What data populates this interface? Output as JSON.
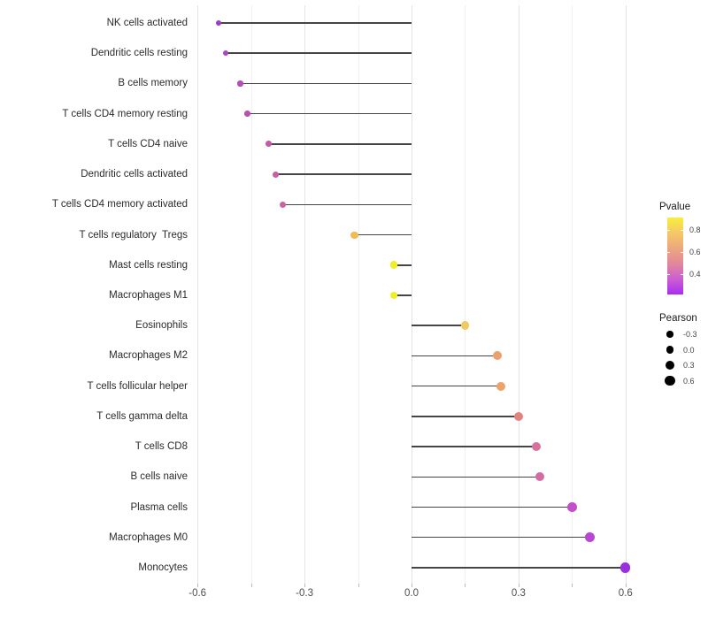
{
  "chart_data": {
    "type": "lollipop",
    "orientation": "horizontal",
    "title": "",
    "xlabel": "",
    "ylabel": "",
    "x_ticks": [
      "-0.6",
      "-0.3",
      "0.0",
      "0.3",
      "0.6"
    ],
    "x_tick_values": [
      -0.6,
      -0.3,
      0.0,
      0.3,
      0.6
    ],
    "x_minor_tick_values": [
      -0.45,
      -0.15,
      0.15,
      0.45
    ],
    "xlim": [
      -0.62,
      0.67
    ],
    "baseline": 0,
    "grid": true,
    "legend_position": "right",
    "points": [
      {
        "label": "NK cells activated",
        "pearson": -0.54,
        "pvalue": 0.33,
        "color": "#9b3dc8"
      },
      {
        "label": "Dendritic cells resting",
        "pearson": -0.52,
        "pvalue": 0.38,
        "color": "#aa46c0"
      },
      {
        "label": "B cells memory",
        "pearson": -0.48,
        "pvalue": 0.42,
        "color": "#b54db8"
      },
      {
        "label": "T cells CD4 memory resting",
        "pearson": -0.46,
        "pvalue": 0.43,
        "color": "#b850b2"
      },
      {
        "label": "T cells CD4 naive",
        "pearson": -0.4,
        "pvalue": 0.47,
        "color": "#c35aa8"
      },
      {
        "label": "Dendritic cells activated",
        "pearson": -0.38,
        "pvalue": 0.49,
        "color": "#c75fa5"
      },
      {
        "label": "T cells CD4 memory activated",
        "pearson": -0.36,
        "pvalue": 0.5,
        "color": "#ca63a2"
      },
      {
        "label": "T cells regulatory  Tregs",
        "pearson": -0.16,
        "pvalue": 0.77,
        "color": "#f0bb58"
      },
      {
        "label": "Mast cells resting",
        "pearson": -0.05,
        "pvalue": 0.9,
        "color": "#f0ee24"
      },
      {
        "label": "Macrophages M1",
        "pearson": -0.05,
        "pvalue": 0.9,
        "color": "#f0ee24"
      },
      {
        "label": "Eosinophils",
        "pearson": 0.15,
        "pvalue": 0.79,
        "color": "#f2c95e"
      },
      {
        "label": "Macrophages M2",
        "pearson": 0.24,
        "pvalue": 0.66,
        "color": "#eba06e"
      },
      {
        "label": "T cells follicular helper",
        "pearson": 0.25,
        "pvalue": 0.66,
        "color": "#eca26b"
      },
      {
        "label": "T cells gamma delta",
        "pearson": 0.3,
        "pvalue": 0.6,
        "color": "#e3837f"
      },
      {
        "label": "T cells CD8",
        "pearson": 0.35,
        "pvalue": 0.54,
        "color": "#d8709d"
      },
      {
        "label": "B cells naive",
        "pearson": 0.36,
        "pvalue": 0.52,
        "color": "#d56ba3"
      },
      {
        "label": "Plasma cells",
        "pearson": 0.45,
        "pvalue": 0.4,
        "color": "#c250c8"
      },
      {
        "label": "Macrophages M0",
        "pearson": 0.5,
        "pvalue": 0.36,
        "color": "#b847d2"
      },
      {
        "label": "Monocytes",
        "pearson": 0.6,
        "pvalue": 0.24,
        "color": "#9a2fe0"
      }
    ]
  },
  "legend_pvalue": {
    "title": "Pvalue",
    "tick_labels": [
      "0.8",
      "0.6",
      "0.4"
    ],
    "tick_values": [
      0.8,
      0.6,
      0.4
    ],
    "range": [
      0.22,
      0.91
    ],
    "gradient_stops": [
      "#f8ee3e",
      "#f5c866",
      "#eda77e",
      "#e2879c",
      "#cc5ed2",
      "#a82df2"
    ]
  },
  "legend_pearson": {
    "title": "Pearson",
    "item_labels": [
      "-0.3",
      "0.0",
      "0.3",
      "0.6"
    ],
    "item_values": [
      -0.3,
      0.0,
      0.3,
      0.6
    ],
    "dot_color": "#000000"
  },
  "colors": {
    "background": "#ffffff",
    "stem": "#454545",
    "grid_major": "#e4e4e4",
    "grid_minor": "#f1f1f1",
    "axis_tick": "#bbbbbb",
    "axis_text": "#4d4d4d",
    "category_text": "#2b2b2b"
  }
}
